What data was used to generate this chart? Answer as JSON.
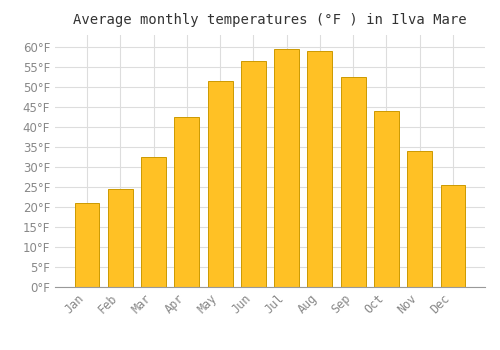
{
  "title": "Average monthly temperatures (°F ) in Ilva Mare",
  "months": [
    "Jan",
    "Feb",
    "Mar",
    "Apr",
    "May",
    "Jun",
    "Jul",
    "Aug",
    "Sep",
    "Oct",
    "Nov",
    "Dec"
  ],
  "values": [
    21,
    24.5,
    32.5,
    42.5,
    51.5,
    56.5,
    59.5,
    59,
    52.5,
    44,
    34,
    25.5
  ],
  "bar_color": "#FFC125",
  "bar_edge_color": "#CC9900",
  "background_color": "#FFFFFF",
  "plot_bg_color": "#FFFFFF",
  "grid_color": "#DDDDDD",
  "ylim": [
    0,
    63
  ],
  "yticks": [
    0,
    5,
    10,
    15,
    20,
    25,
    30,
    35,
    40,
    45,
    50,
    55,
    60
  ],
  "title_fontsize": 10,
  "tick_fontsize": 8.5,
  "tick_color": "#888888",
  "title_color": "#333333"
}
